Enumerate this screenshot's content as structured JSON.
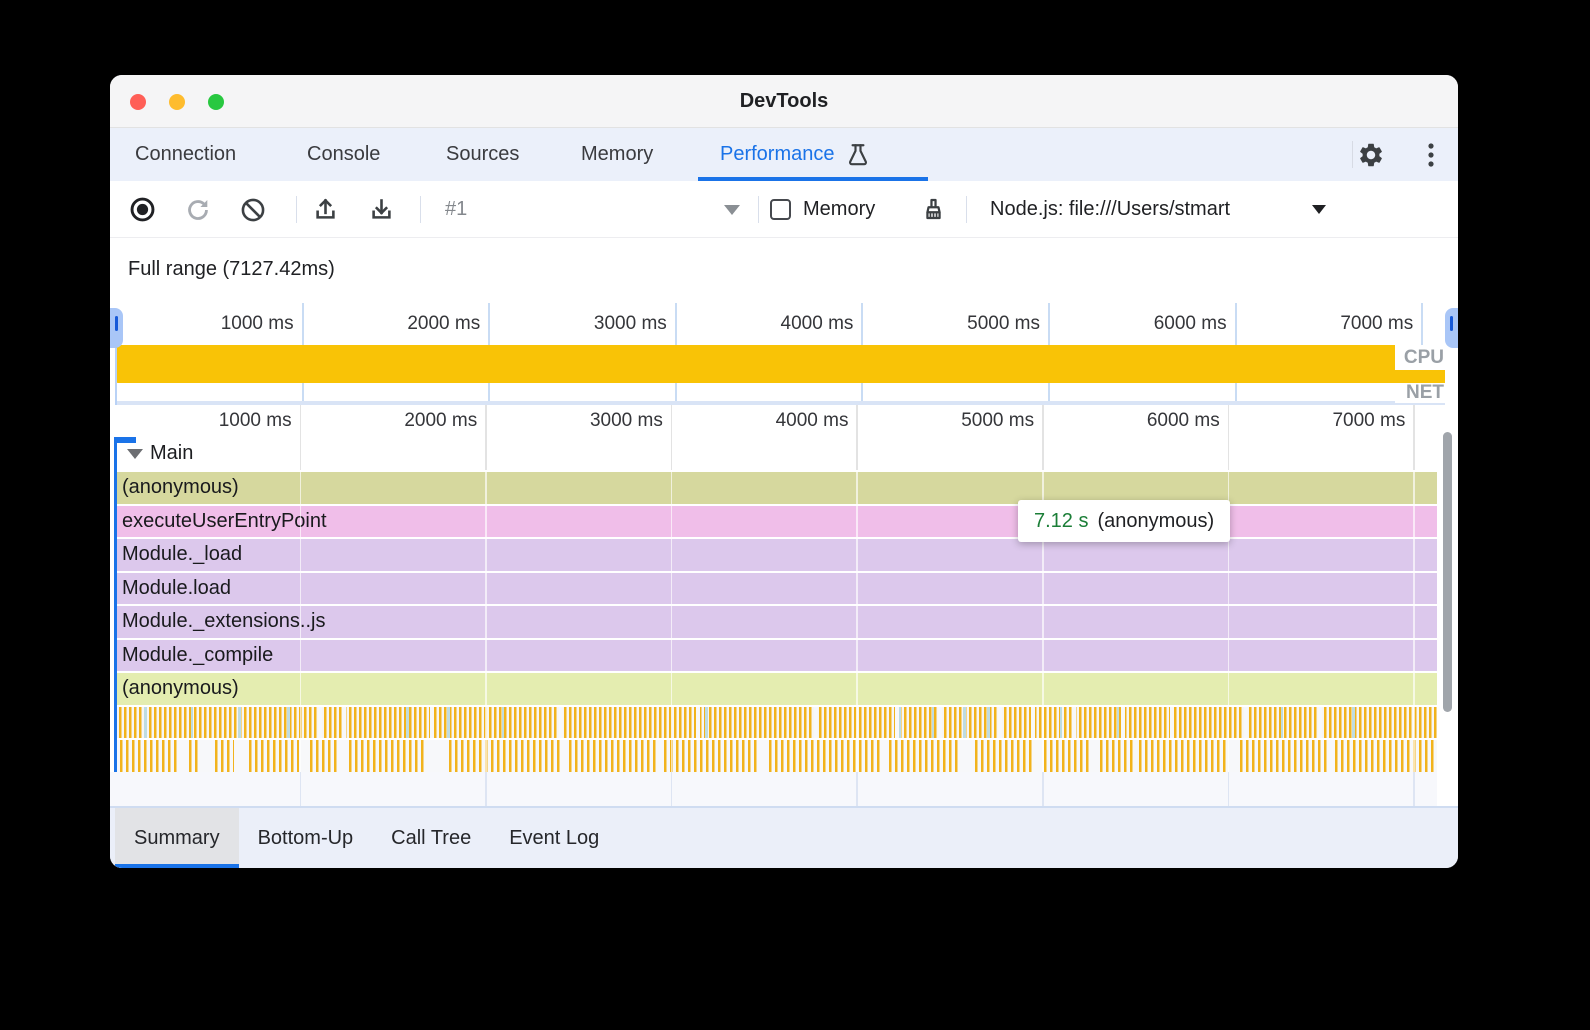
{
  "window": {
    "title": "DevTools"
  },
  "tabs": {
    "items": [
      {
        "label": "Connection"
      },
      {
        "label": "Console"
      },
      {
        "label": "Sources"
      },
      {
        "label": "Memory"
      },
      {
        "label": "Performance"
      }
    ]
  },
  "toolbar": {
    "capture_select": "#1",
    "memory_label": "Memory",
    "target_label": "Node.js: file:///Users/stmart"
  },
  "overview": {
    "full_range_label": "Full range (7127.42ms)",
    "total_ms": 7127.42,
    "tick_ms": [
      1000,
      2000,
      3000,
      4000,
      5000,
      6000,
      7000
    ],
    "tick_labels": [
      "1000 ms",
      "2000 ms",
      "3000 ms",
      "4000 ms",
      "5000 ms",
      "6000 ms",
      "7000 ms"
    ],
    "cpu_label": "CPU",
    "net_label": "NET"
  },
  "flame": {
    "track_label": "Main",
    "tooltip": {
      "duration": "7.12 s",
      "name": "(anonymous)"
    },
    "rows": [
      {
        "label": "(anonymous)",
        "color": "#d6d89e"
      },
      {
        "label": "executeUserEntryPoint",
        "color": "#f0bee9"
      },
      {
        "label": "Module._load",
        "color": "#dcc8ec"
      },
      {
        "label": "Module.load",
        "color": "#dcc8ec"
      },
      {
        "label": "Module._extensions..js",
        "color": "#dcc8ec"
      },
      {
        "label": "Module._compile",
        "color": "#dcc8ec"
      },
      {
        "label": "(anonymous)",
        "color": "#e4edb0"
      }
    ],
    "stripe_rows": [
      {
        "type": "dense",
        "gaps": [
          15.4,
          17.2,
          23.9,
          33.6,
          44.0,
          52.9,
          59.0,
          62.3,
          66.8,
          69.3,
          72.4,
          76.1,
          79.8,
          85.4,
          91.0
        ],
        "teal": [
          2.3,
          5.8,
          9.4,
          13.1,
          22.1,
          25.2,
          29.3,
          44.7,
          59.3,
          61.8,
          64.2,
          66.0,
          71.5,
          75.8,
          88.2,
          93.6
        ]
      },
      {
        "type": "segments",
        "segments": [
          [
            0,
            4.9
          ],
          [
            5.7,
            6.4
          ],
          [
            7.6,
            9.1
          ],
          [
            10.2,
            14
          ],
          [
            14.8,
            17
          ],
          [
            17.8,
            23.4
          ],
          [
            25.3,
            33.7
          ],
          [
            34.4,
            41.2
          ],
          [
            41.6,
            48.8
          ],
          [
            49.5,
            57.9
          ],
          [
            58.6,
            63.9
          ],
          [
            65.1,
            69.6
          ],
          [
            70.3,
            73.8
          ],
          [
            74.5,
            77.2
          ],
          [
            77.5,
            84.3
          ],
          [
            85.1,
            91.9
          ],
          [
            92.3,
            100
          ]
        ]
      }
    ]
  },
  "bottom_tabs": {
    "items": [
      {
        "label": "Summary"
      },
      {
        "label": "Bottom-Up"
      },
      {
        "label": "Call Tree"
      },
      {
        "label": "Event Log"
      }
    ]
  },
  "colors": {
    "accent": "#1a73e8",
    "cpu_fill": "#f9c306",
    "stripe_orange": "#f2b31c",
    "stripe_teal": "#bfdce0",
    "tooltip_duration_green": "#1b7e37"
  }
}
